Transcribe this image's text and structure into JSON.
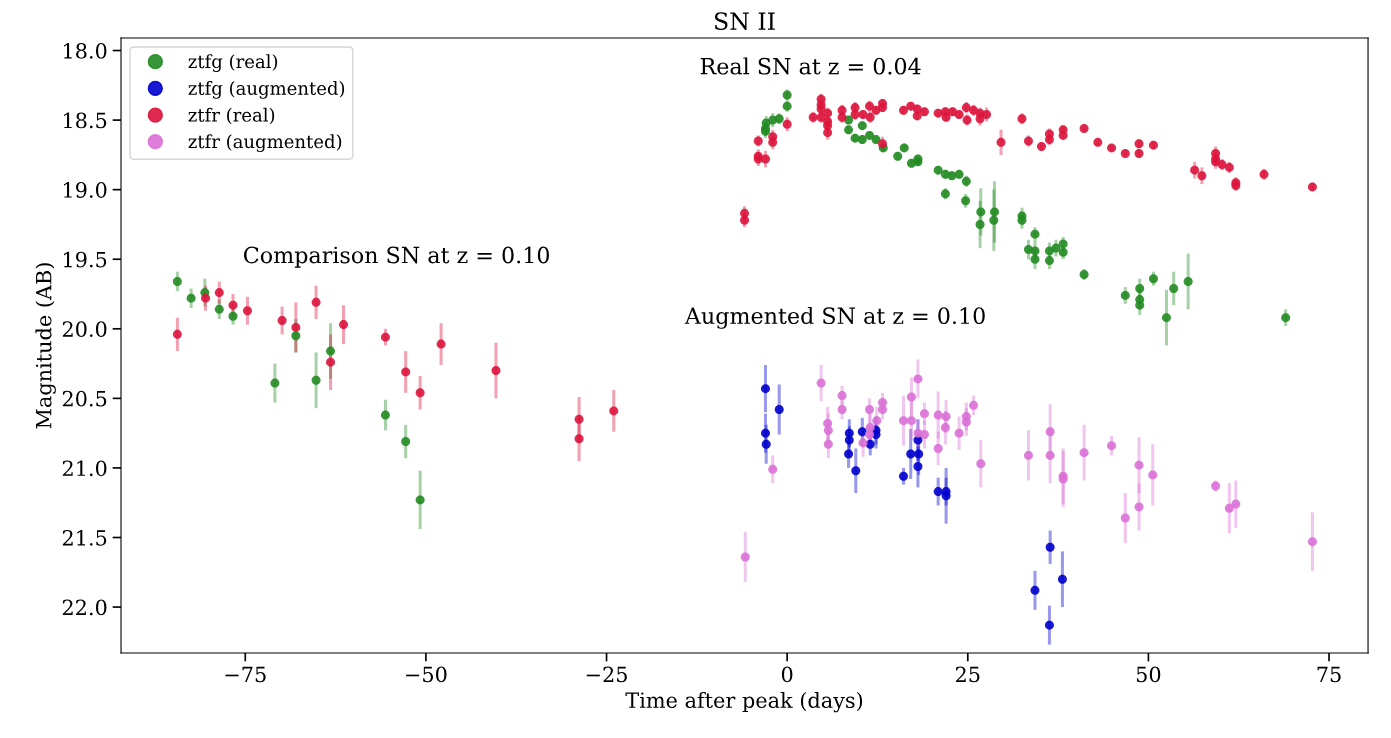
{
  "chart_data": {
    "type": "scatter",
    "title": "SN II",
    "xlabel": "Time after peak (days)",
    "ylabel": "Magnitude (AB)",
    "xlim": [
      -92.2,
      80.4
    ],
    "ylim": [
      22.33,
      17.91
    ],
    "xticks": [
      {
        "value": -75,
        "label": "−75"
      },
      {
        "value": -50,
        "label": "−50"
      },
      {
        "value": -25,
        "label": "−25"
      },
      0,
      25,
      50,
      75
    ],
    "yticks": [
      {
        "value": 18,
        "label": "18.0"
      },
      18.5,
      {
        "value": 19,
        "label": "19.0"
      },
      19.5,
      {
        "value": 20,
        "label": "20.0"
      },
      20.5,
      {
        "value": 21,
        "label": "21.0"
      },
      21.5,
      {
        "value": 22,
        "label": "22.0"
      }
    ],
    "marker": "circle",
    "legend": "top left",
    "grid": false,
    "annotations": [
      "Real SN at z = 0.04",
      "Comparison SN at z = 0.10",
      "Augmented SN at z = 0.10"
    ],
    "series": [
      {
        "name": "ztfg (real)",
        "color": "#228b22",
        "x": [
          -84.4,
          -82.5,
          -80.6,
          -78.6,
          -76.7,
          -68.0,
          -70.9,
          -65.2,
          -63.2,
          -55.6,
          -52.8,
          -50.8,
          0.0,
          0.0,
          -1.1,
          -2.0,
          -2.9,
          -3.0,
          -3.0,
          8.5,
          8.5,
          10.4,
          9.4,
          10.4,
          11.4,
          12.3,
          13.3,
          15.3,
          16.2,
          17.2,
          18.1,
          18.1,
          20.9,
          21.9,
          22.8,
          23.8,
          24.8,
          21.9,
          24.7,
          26.8,
          26.7,
          28.7,
          28.6,
          32.5,
          32.5,
          34.3,
          33.4,
          34.3,
          34.3,
          36.3,
          36.3,
          37.2,
          38.2,
          38.2,
          41.1,
          46.8,
          48.8,
          48.8,
          48.8,
          50.7,
          52.5,
          53.5,
          55.5,
          69.0
        ],
        "values": [
          19.66,
          19.78,
          19.74,
          19.86,
          19.91,
          20.05,
          20.39,
          20.37,
          20.16,
          20.62,
          20.81,
          21.23,
          18.32,
          18.4,
          18.49,
          18.5,
          18.52,
          18.56,
          18.58,
          18.5,
          18.57,
          18.54,
          18.63,
          18.64,
          18.61,
          18.64,
          18.7,
          18.76,
          18.7,
          18.81,
          18.78,
          18.8,
          18.86,
          18.89,
          18.9,
          18.89,
          18.94,
          19.03,
          19.08,
          19.16,
          19.25,
          19.16,
          19.22,
          19.19,
          19.22,
          19.32,
          19.43,
          19.44,
          19.5,
          19.44,
          19.51,
          19.42,
          19.39,
          19.45,
          19.61,
          19.76,
          19.71,
          19.79,
          19.83,
          19.64,
          19.92,
          19.71,
          19.66,
          19.92
        ],
        "errors": [
          0.07,
          0.07,
          0.1,
          0.07,
          0.06,
          0.12,
          0.14,
          0.2,
          0.2,
          0.11,
          0.12,
          0.21,
          0.04,
          0.04,
          0.04,
          0.05,
          0.05,
          0.05,
          0.05,
          0.03,
          0.03,
          0.03,
          0.03,
          0.03,
          0.03,
          0.03,
          0.03,
          0.03,
          0.03,
          0.03,
          0.03,
          0.03,
          0.03,
          0.03,
          0.03,
          0.03,
          0.04,
          0.04,
          0.05,
          0.17,
          0.17,
          0.22,
          0.22,
          0.06,
          0.06,
          0.05,
          0.07,
          0.07,
          0.07,
          0.06,
          0.06,
          0.06,
          0.05,
          0.05,
          0.04,
          0.06,
          0.07,
          0.07,
          0.07,
          0.05,
          0.2,
          0.12,
          0.2,
          0.06
        ]
      },
      {
        "name": "ztfg (augmented)",
        "color": "#0000cd",
        "x": [
          -3.0,
          -3.0,
          -2.9,
          -1.1,
          8.6,
          8.6,
          8.5,
          9.5,
          10.4,
          11.5,
          12.3,
          12.3,
          16.1,
          17.1,
          18.1,
          18.2,
          18.1,
          20.9,
          22.0,
          22.0,
          34.3,
          36.4,
          36.3,
          38.1
        ],
        "values": [
          20.43,
          20.75,
          20.83,
          20.58,
          20.75,
          20.8,
          20.9,
          21.02,
          20.74,
          20.83,
          20.73,
          20.76,
          21.06,
          20.9,
          20.8,
          20.9,
          20.99,
          21.17,
          21.17,
          21.2,
          21.88,
          21.57,
          22.13,
          21.8
        ],
        "errors": [
          0.17,
          0.14,
          0.14,
          0.18,
          0.1,
          0.1,
          0.1,
          0.16,
          0.1,
          0.08,
          0.1,
          0.1,
          0.06,
          0.18,
          0.15,
          0.15,
          0.15,
          0.1,
          0.1,
          0.2,
          0.14,
          0.12,
          0.14,
          0.2
        ]
      },
      {
        "name": "ztfr (real)",
        "color": "#dc143c",
        "x": [
          -84.4,
          -80.5,
          -78.6,
          -76.7,
          -74.7,
          -69.9,
          -68.0,
          -65.2,
          -63.2,
          -61.4,
          -55.6,
          -52.8,
          -50.8,
          -47.9,
          -40.3,
          -28.8,
          -28.8,
          -24.0,
          -5.9,
          -5.9,
          -4.0,
          -4.0,
          -4.0,
          -3.0,
          -2.0,
          -2.0,
          0.0,
          3.6,
          4.7,
          4.7,
          4.7,
          4.7,
          5.6,
          5.6,
          5.6,
          5.6,
          7.6,
          7.6,
          9.4,
          9.4,
          10.5,
          11.4,
          11.5,
          12.3,
          13.2,
          13.2,
          13.2,
          16.1,
          17.1,
          18.0,
          18.0,
          19.0,
          20.9,
          21.9,
          22.0,
          22.9,
          23.8,
          24.8,
          24.9,
          25.8,
          26.7,
          26.7,
          27.6,
          29.6,
          32.5,
          33.4,
          35.2,
          36.3,
          36.3,
          38.2,
          38.2,
          41.1,
          43.0,
          44.9,
          46.8,
          48.7,
          48.7,
          50.7,
          56.4,
          57.4,
          59.3,
          59.3,
          59.3,
          60.2,
          61.2,
          62.1,
          62.1,
          66.0,
          72.7
        ],
        "values": [
          20.04,
          19.78,
          19.74,
          19.83,
          19.87,
          19.94,
          19.99,
          19.81,
          20.24,
          19.97,
          20.06,
          20.31,
          20.46,
          20.11,
          20.3,
          20.65,
          20.79,
          20.59,
          19.17,
          19.22,
          18.65,
          18.76,
          18.78,
          18.78,
          18.62,
          18.66,
          18.53,
          18.48,
          18.35,
          18.39,
          18.42,
          18.48,
          18.45,
          18.51,
          18.54,
          18.59,
          18.43,
          18.48,
          18.41,
          18.46,
          18.46,
          18.4,
          18.48,
          18.43,
          18.38,
          18.41,
          18.67,
          18.43,
          18.4,
          18.42,
          18.47,
          18.44,
          18.45,
          18.44,
          18.48,
          18.44,
          18.46,
          18.41,
          18.5,
          18.43,
          18.45,
          18.49,
          18.46,
          18.66,
          18.49,
          18.65,
          18.69,
          18.6,
          18.64,
          18.57,
          18.61,
          18.56,
          18.66,
          18.7,
          18.74,
          18.67,
          18.74,
          18.68,
          18.86,
          18.9,
          18.74,
          18.78,
          18.8,
          18.82,
          18.84,
          18.95,
          18.97,
          18.89,
          18.98
        ],
        "errors": [
          0.12,
          0.09,
          0.08,
          0.08,
          0.1,
          0.1,
          0.18,
          0.12,
          0.2,
          0.14,
          0.06,
          0.15,
          0.12,
          0.15,
          0.2,
          0.16,
          0.16,
          0.15,
          0.05,
          0.05,
          0.04,
          0.05,
          0.05,
          0.06,
          0.05,
          0.05,
          0.05,
          0.04,
          0.04,
          0.04,
          0.04,
          0.04,
          0.04,
          0.04,
          0.04,
          0.05,
          0.04,
          0.04,
          0.04,
          0.04,
          0.03,
          0.04,
          0.04,
          0.03,
          0.03,
          0.03,
          0.05,
          0.03,
          0.03,
          0.03,
          0.03,
          0.03,
          0.03,
          0.03,
          0.03,
          0.03,
          0.03,
          0.04,
          0.04,
          0.04,
          0.04,
          0.05,
          0.05,
          0.09,
          0.04,
          0.04,
          0.03,
          0.04,
          0.04,
          0.03,
          0.03,
          0.02,
          0.02,
          0.02,
          0.02,
          0.03,
          0.03,
          0.03,
          0.06,
          0.06,
          0.05,
          0.05,
          0.05,
          0.04,
          0.04,
          0.04,
          0.04,
          0.04,
          0.03
        ]
      },
      {
        "name": "ztfr (augmented)",
        "color": "#da70d6",
        "x": [
          -5.8,
          -2.0,
          4.7,
          5.6,
          5.7,
          5.7,
          7.6,
          7.6,
          11.4,
          11.5,
          11.4,
          10.5,
          12.4,
          13.2,
          13.2,
          16.1,
          17.2,
          17.2,
          18.1,
          18.1,
          19.0,
          19.0,
          20.9,
          20.9,
          22.0,
          21.9,
          23.8,
          24.8,
          24.8,
          25.8,
          26.8,
          33.4,
          36.4,
          36.4,
          38.2,
          38.2,
          41.1,
          44.9,
          46.8,
          48.7,
          48.7,
          50.6,
          59.3,
          61.2,
          62.1,
          72.7
        ],
        "values": [
          21.64,
          21.01,
          20.39,
          20.68,
          20.73,
          20.83,
          20.48,
          20.58,
          20.58,
          20.71,
          20.76,
          20.82,
          20.66,
          20.53,
          20.58,
          20.66,
          20.49,
          20.66,
          20.36,
          20.75,
          20.61,
          20.76,
          20.62,
          20.86,
          20.63,
          20.71,
          20.75,
          20.63,
          20.67,
          20.55,
          20.97,
          20.91,
          20.74,
          20.91,
          21.06,
          21.08,
          20.89,
          20.84,
          21.36,
          20.98,
          21.28,
          21.05,
          21.13,
          21.29,
          21.26,
          21.53
        ],
        "errors": [
          0.18,
          0.1,
          0.13,
          0.12,
          0.12,
          0.1,
          0.07,
          0.07,
          0.08,
          0.1,
          0.1,
          0.1,
          0.1,
          0.07,
          0.07,
          0.18,
          0.14,
          0.14,
          0.14,
          0.1,
          0.08,
          0.1,
          0.17,
          0.12,
          0.12,
          0.12,
          0.12,
          0.1,
          0.1,
          0.07,
          0.17,
          0.18,
          0.2,
          0.2,
          0.2,
          0.2,
          0.2,
          0.07,
          0.18,
          0.2,
          0.17,
          0.22,
          0.04,
          0.18,
          0.17,
          0.21
        ]
      }
    ]
  }
}
